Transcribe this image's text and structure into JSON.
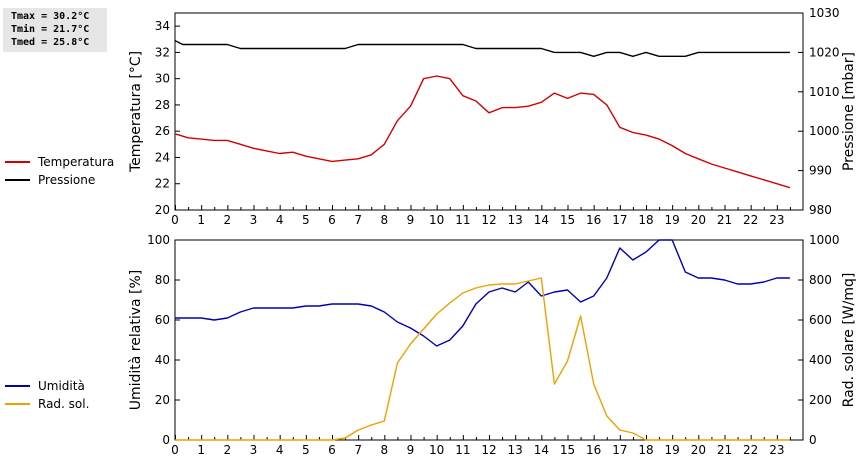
{
  "stats": {
    "tmax": "Tmax = 30.2°C",
    "tmin": "Tmin = 21.7°C",
    "tmed": "Tmed = 25.8°C"
  },
  "chart_data": [
    {
      "type": "line",
      "x_ticks": [
        "0",
        "1",
        "2",
        "3",
        "4",
        "5",
        "6",
        "7",
        "8",
        "9",
        "10",
        "11",
        "12",
        "13",
        "14",
        "15",
        "16",
        "17",
        "18",
        "19",
        "20",
        "21",
        "22",
        "23"
      ],
      "xlim": [
        0,
        24
      ],
      "grid": false,
      "legend": "left",
      "y_left": {
        "label": "Temperatura [°C]",
        "lim": [
          20,
          35
        ],
        "ticks": [
          "20",
          "22",
          "24",
          "26",
          "28",
          "30",
          "32",
          "34"
        ]
      },
      "y_right": {
        "label": "Pressione [mbar]",
        "lim": [
          980,
          1030
        ],
        "ticks": [
          "980",
          "990",
          "1000",
          "1010",
          "1020",
          "1030"
        ]
      },
      "series": [
        {
          "name": "Temperatura",
          "color": "#d40000",
          "axis": "left",
          "x": [
            0,
            0.5,
            1,
            1.5,
            2,
            2.5,
            3,
            3.5,
            4,
            4.5,
            5,
            5.5,
            6,
            6.5,
            7,
            7.5,
            8,
            8.5,
            9,
            9.5,
            10,
            10.5,
            11,
            11.5,
            12,
            12.5,
            13,
            13.5,
            14,
            14.5,
            15,
            15.5,
            16,
            16.5,
            17,
            17.5,
            18,
            18.5,
            19,
            19.5,
            20,
            20.5,
            21,
            21.5,
            22,
            22.5,
            23,
            23.5
          ],
          "y": [
            25.8,
            25.5,
            25.4,
            25.3,
            25.3,
            25.0,
            24.7,
            24.5,
            24.3,
            24.4,
            24.1,
            23.9,
            23.7,
            23.8,
            23.9,
            24.2,
            25.0,
            26.8,
            27.9,
            30.0,
            30.2,
            30.0,
            28.7,
            28.3,
            27.4,
            27.8,
            27.8,
            27.9,
            28.2,
            28.9,
            28.5,
            28.9,
            28.8,
            28.0,
            26.3,
            25.9,
            25.7,
            25.4,
            24.9,
            24.3,
            23.9,
            23.5,
            23.2,
            22.9,
            22.6,
            22.3,
            22.0,
            21.7
          ]
        },
        {
          "name": "Pressione",
          "color": "#000000",
          "axis": "right",
          "x": [
            0,
            0.3,
            1,
            1.5,
            2,
            2.5,
            3,
            4,
            5,
            6,
            6.5,
            7,
            8,
            9,
            10,
            11,
            11.5,
            12,
            13,
            14,
            14.5,
            15,
            15.5,
            16,
            16.5,
            17,
            17.5,
            18,
            18.5,
            19,
            19.5,
            20,
            21,
            22,
            23,
            23.5
          ],
          "y": [
            1023,
            1022,
            1022,
            1022,
            1022,
            1021,
            1021,
            1021,
            1021,
            1021,
            1021,
            1022,
            1022,
            1022,
            1022,
            1022,
            1021,
            1021,
            1021,
            1021,
            1020,
            1020,
            1020,
            1019,
            1020,
            1020,
            1019,
            1020,
            1019,
            1019,
            1019,
            1020,
            1020,
            1020,
            1020,
            1020
          ]
        }
      ]
    },
    {
      "type": "line",
      "x_ticks": [
        "0",
        "1",
        "2",
        "3",
        "4",
        "5",
        "6",
        "7",
        "8",
        "9",
        "10",
        "11",
        "12",
        "13",
        "14",
        "15",
        "16",
        "17",
        "18",
        "19",
        "20",
        "21",
        "22",
        "23"
      ],
      "xlim": [
        0,
        24
      ],
      "grid": false,
      "legend": "left",
      "y_left": {
        "label": "Umidità relativa [%]",
        "lim": [
          0,
          100
        ],
        "ticks": [
          "0",
          "20",
          "40",
          "60",
          "80",
          "100"
        ]
      },
      "y_right": {
        "label": "Rad. solare [W/mq]",
        "lim": [
          0,
          1000
        ],
        "ticks": [
          "0",
          "200",
          "400",
          "600",
          "800",
          "1000"
        ]
      },
      "series": [
        {
          "name": "Umidità",
          "color": "#0000b4",
          "axis": "left",
          "x": [
            0,
            0.5,
            1,
            1.5,
            2,
            2.5,
            3,
            3.5,
            4,
            4.5,
            5,
            5.5,
            6,
            6.5,
            7,
            7.5,
            8,
            8.5,
            9,
            9.5,
            10,
            10.5,
            11,
            11.5,
            12,
            12.5,
            13,
            13.5,
            14,
            14.5,
            15,
            15.5,
            16,
            16.5,
            17,
            17.5,
            18,
            18.5,
            19,
            19.5,
            20,
            20.5,
            21,
            21.5,
            22,
            22.5,
            23,
            23.5
          ],
          "y": [
            61,
            61,
            61,
            60,
            61,
            64,
            66,
            66,
            66,
            66,
            67,
            67,
            68,
            68,
            68,
            67,
            64,
            59,
            56,
            52,
            47,
            50,
            57,
            68,
            74,
            76,
            74,
            79,
            72,
            74,
            75,
            69,
            72,
            81,
            96,
            90,
            94,
            100,
            100,
            84,
            81,
            81,
            80,
            78,
            78,
            79,
            81,
            81
          ]
        },
        {
          "name": "Rad. sol.",
          "color": "#f0a000",
          "axis": "right",
          "x": [
            0,
            1,
            2,
            3,
            4,
            5,
            6,
            6.5,
            7,
            7.5,
            8,
            8.5,
            9,
            9.5,
            10,
            10.5,
            11,
            11.5,
            12,
            12.5,
            13,
            13.5,
            14,
            14.5,
            15,
            15.5,
            16,
            16.5,
            17,
            17.5,
            18,
            19,
            20,
            21,
            22,
            23,
            23.5
          ],
          "y": [
            0,
            0,
            0,
            0,
            0,
            0,
            0,
            10,
            50,
            75,
            95,
            385,
            480,
            555,
            630,
            685,
            735,
            760,
            775,
            780,
            780,
            795,
            810,
            280,
            395,
            620,
            280,
            120,
            50,
            35,
            0,
            0,
            0,
            0,
            0,
            0,
            0
          ]
        }
      ]
    }
  ]
}
